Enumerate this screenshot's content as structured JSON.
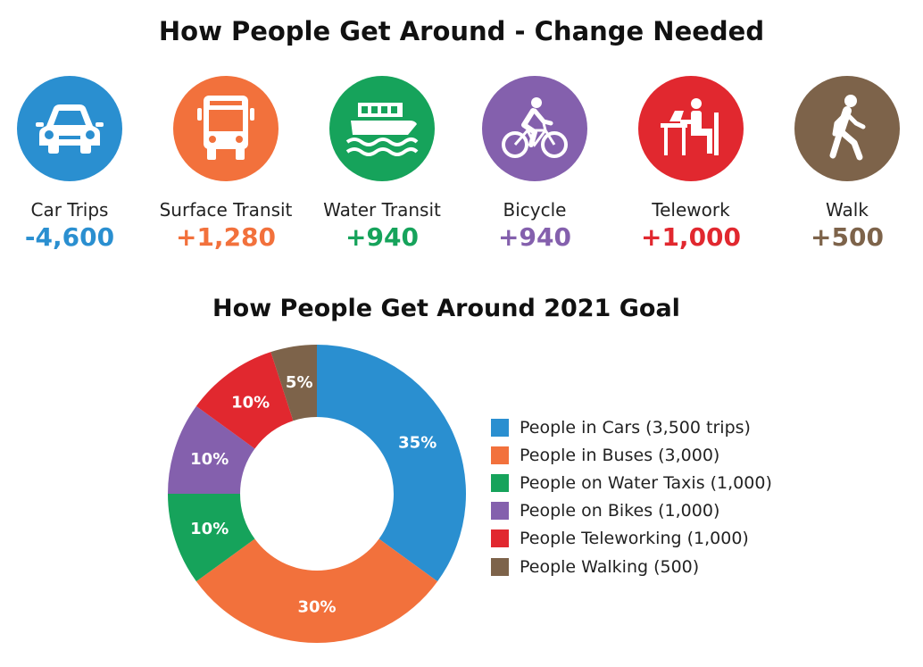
{
  "title": "How People Get Around - Change Needed",
  "modes": [
    {
      "label": "Car Trips",
      "value": "-4,600",
      "color": "#2a8fd0",
      "icon": "car-icon"
    },
    {
      "label": "Surface Transit",
      "value": "+1,280",
      "color": "#f2713c",
      "icon": "bus-icon"
    },
    {
      "label": "Water Transit",
      "value": "+940",
      "color": "#16a35b",
      "icon": "ferry-icon"
    },
    {
      "label": "Bicycle",
      "value": "+940",
      "color": "#8460ad",
      "icon": "bicycle-icon"
    },
    {
      "label": "Telework",
      "value": "+1,000",
      "color": "#e1282f",
      "icon": "telework-icon"
    },
    {
      "label": "Walk",
      "value": "+500",
      "color": "#7d634a",
      "icon": "walk-icon"
    }
  ],
  "chart_data": {
    "type": "pie",
    "title": "How People Get Around 2021 Goal",
    "categories": [
      "People in Cars (3,500 trips)",
      "People in Buses (3,000)",
      "People on Water Taxis (1,000)",
      "People on Bikes (1,000)",
      "People Teleworking (1,000)",
      "People Walking (500)"
    ],
    "values": [
      35,
      30,
      10,
      10,
      10,
      5
    ],
    "value_labels": [
      "35%",
      "30%",
      "10%",
      "10%",
      "10%",
      "5%"
    ],
    "colors": [
      "#2a8fd0",
      "#f2713c",
      "#16a35b",
      "#8460ad",
      "#e1282f",
      "#7d634a"
    ],
    "donut": true,
    "legend_position": "right"
  }
}
